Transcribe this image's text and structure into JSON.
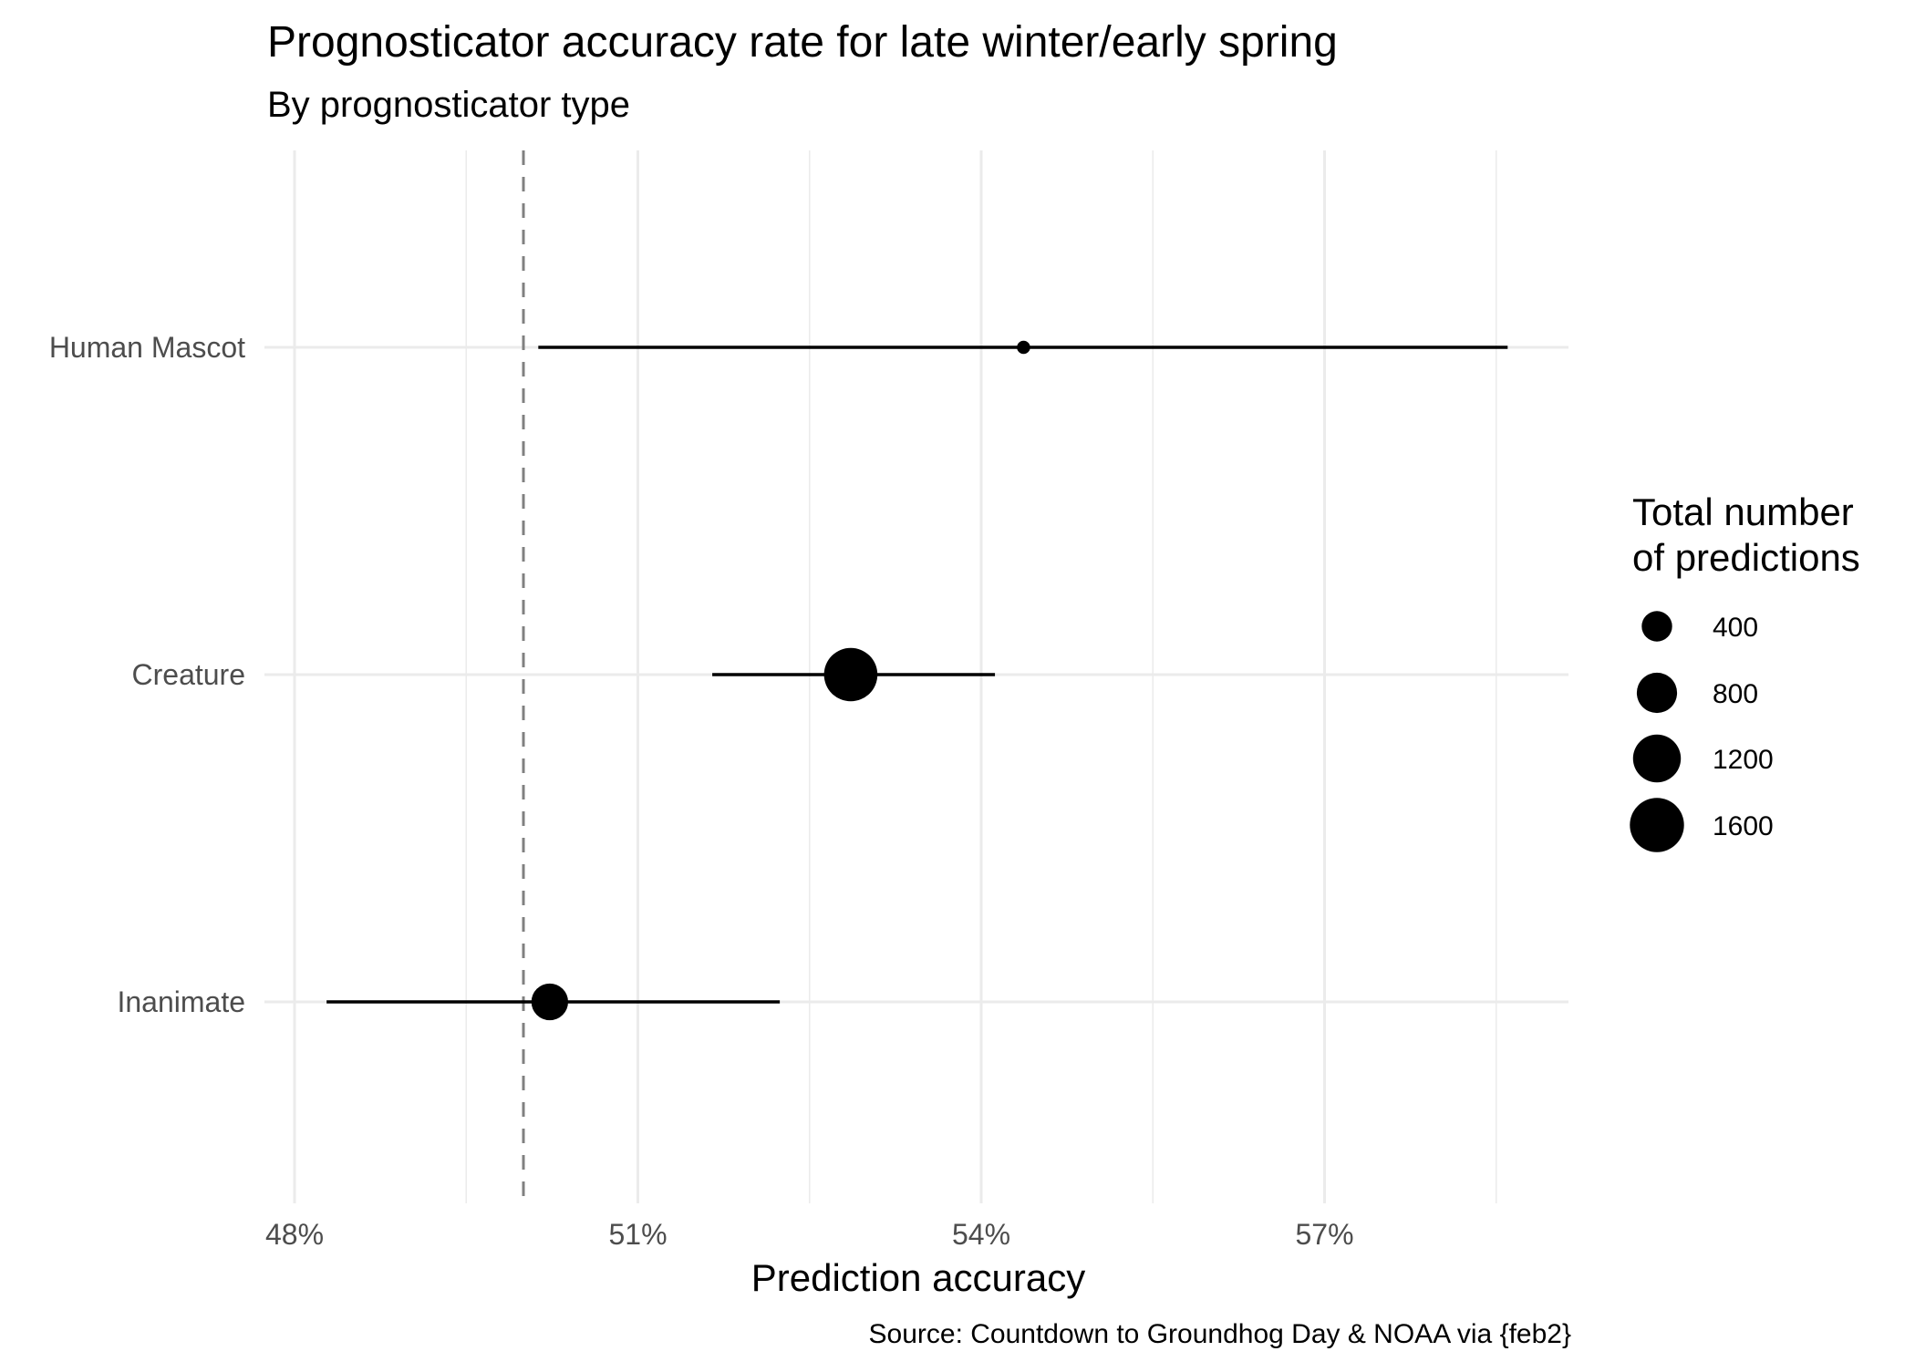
{
  "chart_data": {
    "type": "point-range",
    "title": "Prognosticator accuracy rate for late winter/early spring",
    "subtitle": "By prognosticator type",
    "xlabel": "Prediction accuracy",
    "ylabel": "",
    "caption": "Source: Countdown to Groundhog Day & NOAA via {feb2}",
    "xlim": [
      47.8,
      59.1
    ],
    "x_ticks": [
      48,
      51,
      54,
      57
    ],
    "x_tick_labels": [
      "48%",
      "51%",
      "54%",
      "57%"
    ],
    "reference_line": {
      "x": 50,
      "style": "dashed",
      "color": "#808080"
    },
    "categories": [
      "Human Mascot",
      "Creature",
      "Inanimate"
    ],
    "points": [
      {
        "category": "Human Mascot",
        "accuracy": 54.37,
        "low": 50.13,
        "high": 58.6,
        "n": 30
      },
      {
        "category": "Creature",
        "accuracy": 52.86,
        "low": 51.65,
        "high": 54.12,
        "n": 1550
      },
      {
        "category": "Inanimate",
        "accuracy": 50.23,
        "low": 48.28,
        "high": 52.24,
        "n": 640
      }
    ],
    "legend": {
      "title_lines": [
        "Total number",
        "of predictions"
      ],
      "placement": "right",
      "items": [
        {
          "label": "400",
          "n": 400
        },
        {
          "label": "800",
          "n": 800
        },
        {
          "label": "1200",
          "n": 1200
        },
        {
          "label": "1600",
          "n": 1600
        }
      ]
    },
    "grid": true
  }
}
